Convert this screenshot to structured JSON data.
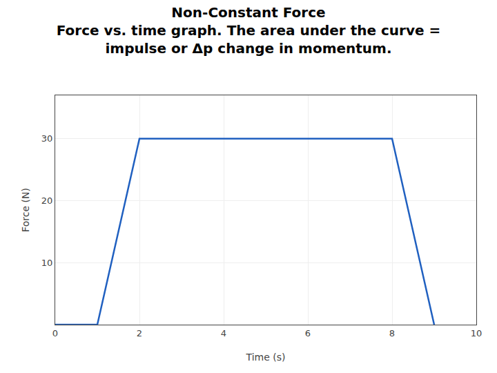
{
  "chart_data": {
    "type": "line",
    "title": "Non-Constant Force\nForce vs. time graph. The area under the curve =\nimpulse or Δp change in momentum.",
    "xlabel": "Time (s)",
    "ylabel": "Force (N)",
    "x": [
      0,
      1,
      2,
      8,
      9
    ],
    "values": [
      0,
      0,
      30,
      30,
      0
    ],
    "color": "#2060c0",
    "xlim": [
      0,
      10
    ],
    "ylim": [
      0,
      37
    ],
    "xticks": [
      0,
      2,
      4,
      6,
      8,
      10
    ],
    "yticks": [
      10,
      20,
      30
    ],
    "grid": true
  }
}
